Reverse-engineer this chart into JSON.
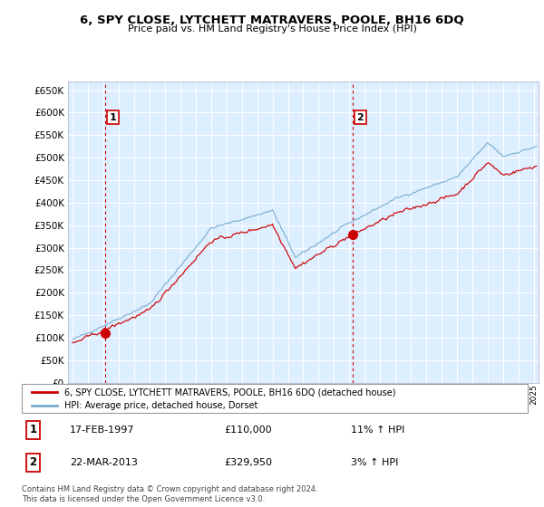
{
  "title": "6, SPY CLOSE, LYTCHETT MATRAVERS, POOLE, BH16 6DQ",
  "subtitle": "Price paid vs. HM Land Registry's House Price Index (HPI)",
  "legend_line1": "6, SPY CLOSE, LYTCHETT MATRAVERS, POOLE, BH16 6DQ (detached house)",
  "legend_line2": "HPI: Average price, detached house, Dorset",
  "footer": "Contains HM Land Registry data © Crown copyright and database right 2024.\nThis data is licensed under the Open Government Licence v3.0.",
  "t1_label": "1",
  "t1_date": "17-FEB-1997",
  "t1_price": "£110,000",
  "t1_hpi": "11% ↑ HPI",
  "t1_year": 1997.12,
  "t1_value": 110000,
  "t2_label": "2",
  "t2_date": "22-MAR-2013",
  "t2_price": "£329,950",
  "t2_hpi": "3% ↑ HPI",
  "t2_year": 2013.22,
  "t2_value": 329950,
  "red_color": "#cc0000",
  "blue_color": "#7aadcf",
  "dash_color": "#cc0000",
  "bg_color": "#ddeeff",
  "grid_color": "#ffffff",
  "marker_color": "#cc0000",
  "marker_size": 7,
  "ylim_min": 0,
  "ylim_max": 670000,
  "xlim_min": 1994.7,
  "xlim_max": 2025.3,
  "ytick_step": 50000
}
